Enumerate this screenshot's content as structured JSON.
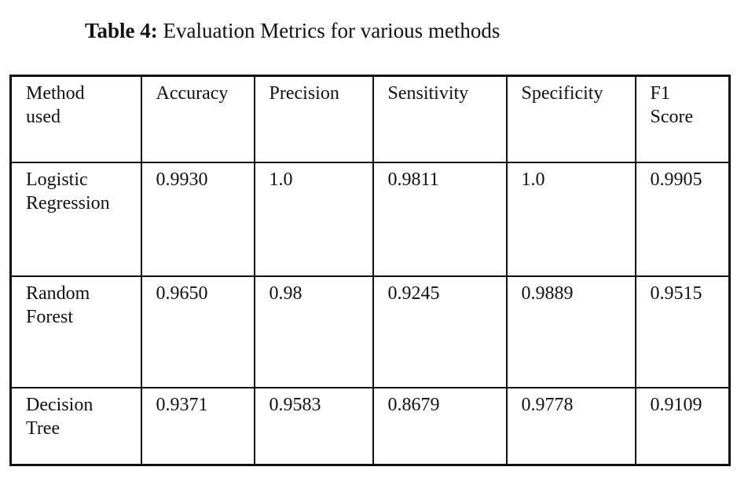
{
  "caption": {
    "label": "Table 4:",
    "text": " Evaluation Metrics for various methods"
  },
  "table": {
    "headers": [
      "Method used",
      "Accuracy",
      "Precision",
      "Sensitivity",
      "Specificity",
      "F1 Score"
    ],
    "rows": [
      {
        "method": "Logistic Regression",
        "accuracy": "0.9930",
        "precision": "1.0",
        "sensitivity": "0.9811",
        "specificity": "1.0",
        "f1": "0.9905"
      },
      {
        "method": "Random Forest",
        "accuracy": "0.9650",
        "precision": "0.98",
        "sensitivity": "0.9245",
        "specificity": "0.9889",
        "f1": "0.9515"
      },
      {
        "method": "Decision Tree",
        "accuracy": "0.9371",
        "precision": "0.9583",
        "sensitivity": "0.8679",
        "specificity": "0.9778",
        "f1": "0.9109"
      }
    ]
  }
}
